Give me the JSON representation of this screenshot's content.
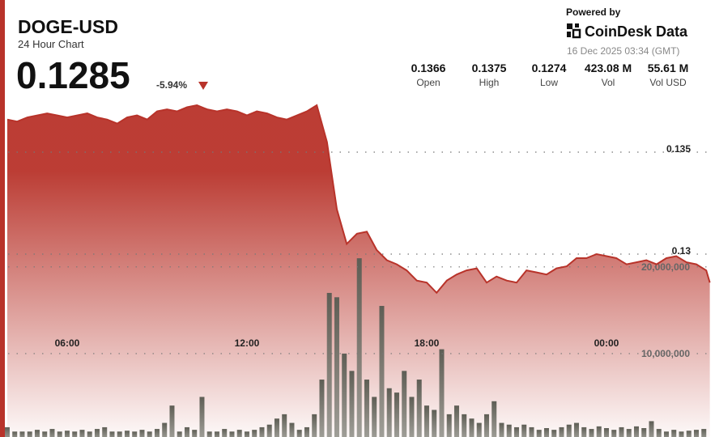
{
  "header": {
    "title": "DOGE-USD",
    "subtitle": "24 Hour Chart",
    "price": "0.1285",
    "change": "-5.94%",
    "powered_by": "Powered by",
    "brand": "CoinDesk Data",
    "timestamp": "16 Dec 2025 03:34 (GMT)",
    "stats": [
      {
        "value": "0.1366",
        "label": "Open"
      },
      {
        "value": "0.1375",
        "label": "High"
      },
      {
        "value": "0.1274",
        "label": "Low"
      },
      {
        "value": "423.08 M",
        "label": "Vol"
      },
      {
        "value": "55.61 M",
        "label": "Vol USD"
      }
    ]
  },
  "chart_data": {
    "type": "area",
    "line_color": "#b8332a",
    "bar_color": "#6f6f66",
    "xlim": [
      3.92,
      27.46
    ],
    "xticks": [
      {
        "value": 6,
        "label": "06:00"
      },
      {
        "value": 12,
        "label": "12:00"
      },
      {
        "value": 18,
        "label": "18:00"
      },
      {
        "value": 24,
        "label": "00:00"
      }
    ],
    "ylim": [
      0.12103,
      0.14246
    ],
    "yticks": [
      0.135,
      0.13
    ],
    "y2lim": [
      0,
      50800000
    ],
    "y2ticks": [
      {
        "value": 20000000,
        "label": "20,000,000"
      },
      {
        "value": 10000000,
        "label": "10,000,000"
      }
    ],
    "price": {
      "x": [
        4,
        4.33,
        4.67,
        5,
        5.33,
        5.67,
        6,
        6.33,
        6.67,
        7,
        7.33,
        7.67,
        8,
        8.33,
        8.67,
        9,
        9.33,
        9.67,
        10,
        10.33,
        10.67,
        11,
        11.33,
        11.67,
        12,
        12.33,
        12.67,
        13,
        13.33,
        13.67,
        14,
        14.33,
        14.67,
        15,
        15.33,
        15.67,
        16,
        16.33,
        16.67,
        17,
        17.33,
        17.67,
        18,
        18.33,
        18.67,
        19,
        19.33,
        19.67,
        20,
        20.33,
        20.67,
        21,
        21.33,
        21.67,
        22,
        22.33,
        22.67,
        23,
        23.33,
        23.67,
        24,
        24.33,
        24.67,
        25,
        25.33,
        25.67,
        26,
        26.33,
        26.67,
        27,
        27.33,
        27.45
      ],
      "values": [
        0.1366,
        0.1365,
        0.1367,
        0.1368,
        0.1369,
        0.1368,
        0.1367,
        0.1368,
        0.1369,
        0.1367,
        0.1366,
        0.1364,
        0.1367,
        0.1368,
        0.1366,
        0.137,
        0.1371,
        0.137,
        0.1372,
        0.1373,
        0.1371,
        0.137,
        0.1371,
        0.137,
        0.1368,
        0.137,
        0.1369,
        0.1367,
        0.1366,
        0.1368,
        0.137,
        0.1373,
        0.1355,
        0.1322,
        0.1305,
        0.131,
        0.1311,
        0.1302,
        0.1297,
        0.1295,
        0.1292,
        0.1287,
        0.1286,
        0.1281,
        0.1287,
        0.129,
        0.1292,
        0.1293,
        0.1286,
        0.1289,
        0.1287,
        0.1286,
        0.1292,
        0.1291,
        0.129,
        0.1293,
        0.1294,
        0.1298,
        0.1298,
        0.13,
        0.1299,
        0.1298,
        0.1295,
        0.1296,
        0.1297,
        0.1295,
        0.1298,
        0.1299,
        0.1296,
        0.1295,
        0.1292,
        0.1286
      ]
    },
    "volume": {
      "x": [
        4,
        4.25,
        4.5,
        4.75,
        5,
        5.25,
        5.5,
        5.75,
        6,
        6.25,
        6.5,
        6.75,
        7,
        7.25,
        7.5,
        7.75,
        8,
        8.25,
        8.5,
        8.75,
        9,
        9.25,
        9.5,
        9.75,
        10,
        10.25,
        10.5,
        10.75,
        11,
        11.25,
        11.5,
        11.75,
        12,
        12.25,
        12.5,
        12.75,
        13,
        13.25,
        13.5,
        13.75,
        14,
        14.25,
        14.5,
        14.75,
        15,
        15.25,
        15.5,
        15.75,
        16,
        16.25,
        16.5,
        16.75,
        17,
        17.25,
        17.5,
        17.75,
        18,
        18.25,
        18.5,
        18.75,
        19,
        19.25,
        19.5,
        19.75,
        20,
        20.25,
        20.5,
        20.75,
        21,
        21.25,
        21.5,
        21.75,
        22,
        22.25,
        22.5,
        22.75,
        23,
        23.25,
        23.5,
        23.75,
        24,
        24.25,
        24.5,
        24.75,
        25,
        25.25,
        25.5,
        25.75,
        26,
        26.25,
        26.5,
        26.75,
        27,
        27.25
      ],
      "values": [
        1500000,
        1000000,
        1000000,
        1000000,
        1200000,
        1000000,
        1300000,
        1000000,
        1100000,
        1000000,
        1200000,
        1000000,
        1300000,
        1500000,
        1000000,
        1000000,
        1100000,
        1000000,
        1200000,
        1000000,
        1300000,
        2000000,
        4000000,
        1000000,
        1500000,
        1200000,
        5000000,
        1000000,
        1000000,
        1300000,
        1000000,
        1200000,
        1000000,
        1200000,
        1500000,
        1800000,
        2500000,
        3000000,
        2000000,
        1200000,
        1500000,
        3000000,
        7000000,
        17000000,
        16500000,
        10000000,
        8000000,
        21000000,
        7000000,
        5000000,
        15500000,
        6000000,
        5500000,
        8000000,
        5000000,
        7000000,
        4000000,
        3500000,
        10500000,
        3000000,
        4000000,
        3000000,
        2500000,
        2000000,
        3000000,
        4500000,
        2000000,
        1800000,
        1500000,
        1800000,
        1500000,
        1200000,
        1400000,
        1200000,
        1500000,
        1800000,
        2000000,
        1500000,
        1300000,
        1600000,
        1400000,
        1200000,
        1500000,
        1300000,
        1600000,
        1400000,
        2200000,
        1300000,
        1000000,
        1200000,
        1000000,
        1100000,
        1200000,
        1300000
      ]
    }
  }
}
